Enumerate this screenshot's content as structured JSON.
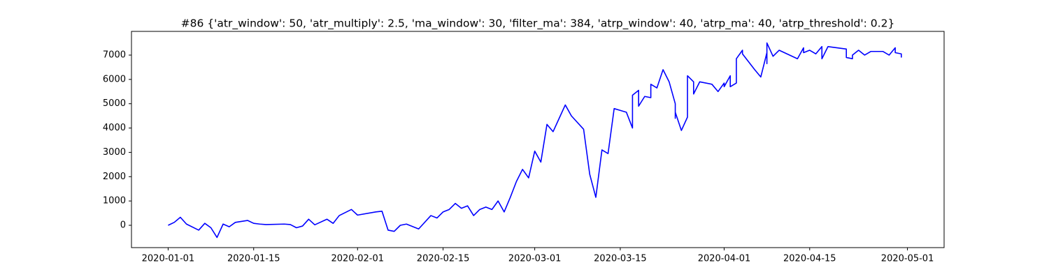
{
  "chart_data": {
    "type": "line",
    "title": "#86 {'atr_window': 50, 'atr_multiply': 2.5, 'ma_window': 30, 'filter_ma': 384, 'atrp_window': 40, 'atrp_ma': 40, 'atrp_threshold': 0.2}",
    "color": "#0000ff",
    "xlim": [
      "2019-12-26",
      "2020-05-07"
    ],
    "xticks": [
      "2020-01-01",
      "2020-01-15",
      "2020-02-01",
      "2020-02-15",
      "2020-03-01",
      "2020-03-15",
      "2020-04-01",
      "2020-04-15",
      "2020-05-01"
    ],
    "ylim": [
      -918,
      7975
    ],
    "yticks": [
      0,
      1000,
      2000,
      3000,
      4000,
      5000,
      6000,
      7000
    ],
    "grid": false,
    "x": [
      "2020-01-01",
      "2020-01-02",
      "2020-01-03",
      "2020-01-04",
      "2020-01-06",
      "2020-01-07",
      "2020-01-08",
      "2020-01-09",
      "2020-01-10",
      "2020-01-11",
      "2020-01-12",
      "2020-01-14",
      "2020-01-15",
      "2020-01-16",
      "2020-01-17",
      "2020-01-20",
      "2020-01-21",
      "2020-01-22",
      "2020-01-23",
      "2020-01-24",
      "2020-01-25",
      "2020-01-27",
      "2020-01-28",
      "2020-01-29",
      "2020-01-31",
      "2020-02-01",
      "2020-02-04",
      "2020-02-05",
      "2020-02-06",
      "2020-02-07",
      "2020-02-08",
      "2020-02-09",
      "2020-02-10",
      "2020-02-11",
      "2020-02-13",
      "2020-02-14",
      "2020-02-15",
      "2020-02-16",
      "2020-02-17",
      "2020-02-18",
      "2020-02-19",
      "2020-02-20",
      "2020-02-21",
      "2020-02-22",
      "2020-02-23",
      "2020-02-24",
      "2020-02-25",
      "2020-02-26",
      "2020-02-27",
      "2020-02-28",
      "2020-02-29",
      "2020-03-01",
      "2020-03-02",
      "2020-03-03",
      "2020-03-04",
      "2020-03-05",
      "2020-03-06",
      "2020-03-07",
      "2020-03-09",
      "2020-03-10",
      "2020-03-11",
      "2020-03-12",
      "2020-03-13",
      "2020-03-14",
      "2020-03-16",
      "2020-03-17",
      "2020-03-17",
      "2020-03-18",
      "2020-03-18",
      "2020-03-19",
      "2020-03-20",
      "2020-03-20",
      "2020-03-21",
      "2020-03-22",
      "2020-03-23",
      "2020-03-24",
      "2020-03-24",
      "2020-03-24",
      "2020-03-25",
      "2020-03-26",
      "2020-03-26",
      "2020-03-27",
      "2020-03-27",
      "2020-03-28",
      "2020-03-30",
      "2020-03-31",
      "2020-04-01",
      "2020-04-01",
      "2020-04-02",
      "2020-04-02",
      "2020-04-03",
      "2020-04-03",
      "2020-04-04",
      "2020-04-04",
      "2020-04-06",
      "2020-04-07",
      "2020-04-08",
      "2020-04-08",
      "2020-04-08",
      "2020-04-09",
      "2020-04-10",
      "2020-04-13",
      "2020-04-14",
      "2020-04-14",
      "2020-04-15",
      "2020-04-16",
      "2020-04-17",
      "2020-04-17",
      "2020-04-18",
      "2020-04-21",
      "2020-04-21",
      "2020-04-22",
      "2020-04-22",
      "2020-04-23",
      "2020-04-24",
      "2020-04-25",
      "2020-04-27",
      "2020-04-28",
      "2020-04-29",
      "2020-04-29",
      "2020-04-30",
      "2020-04-30"
    ],
    "values": [
      0,
      120,
      330,
      50,
      -200,
      80,
      -100,
      -500,
      50,
      -60,
      120,
      200,
      80,
      50,
      30,
      50,
      30,
      -100,
      -30,
      250,
      20,
      250,
      80,
      400,
      650,
      420,
      550,
      580,
      -200,
      -250,
      0,
      50,
      -50,
      -150,
      400,
      300,
      550,
      650,
      900,
      700,
      800,
      400,
      650,
      750,
      650,
      1000,
      550,
      1150,
      1800,
      2300,
      1950,
      3050,
      2600,
      4150,
      3850,
      4400,
      4950,
      4500,
      3950,
      2100,
      1150,
      3100,
      2950,
      4800,
      4650,
      4000,
      5350,
      5550,
      4900,
      5300,
      5250,
      5800,
      5650,
      6400,
      5900,
      5000,
      4400,
      4650,
      3900,
      4450,
      6150,
      5900,
      5400,
      5900,
      5800,
      5500,
      5850,
      5700,
      6150,
      5700,
      5850,
      6850,
      7200,
      7050,
      6400,
      6100,
      7100,
      6650,
      7500,
      6950,
      7200,
      6850,
      7300,
      7100,
      7200,
      7050,
      7350,
      6850,
      7350,
      7250,
      6900,
      6850,
      7000,
      7200,
      7000,
      7150,
      7150,
      7000,
      7300,
      7100,
      7050,
      6900
    ]
  }
}
